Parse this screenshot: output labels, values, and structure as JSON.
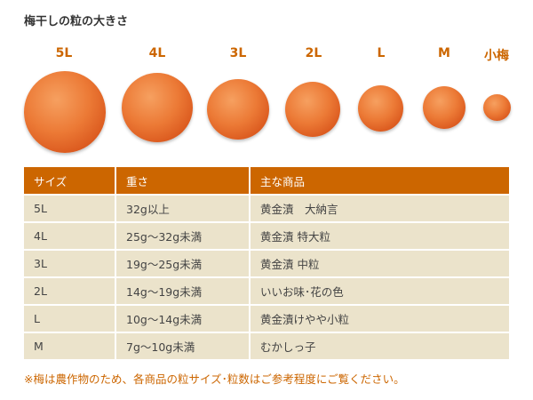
{
  "title": "梅干しの粒の大きさ",
  "plums": [
    {
      "label": "5L"
    },
    {
      "label": "4L"
    },
    {
      "label": "3L"
    },
    {
      "label": "2L"
    },
    {
      "label": "L"
    },
    {
      "label": "M"
    },
    {
      "label": "小梅"
    }
  ],
  "table": {
    "headers": [
      "サイズ",
      "重さ",
      "主な商品"
    ],
    "rows": [
      [
        "5L",
        "32g以上",
        "黄金漬　大納言"
      ],
      [
        "4L",
        "25g～32g未満",
        "黄金漬 特大粒"
      ],
      [
        "3L",
        "19g～25g未満",
        "黄金漬 中粒"
      ],
      [
        "2L",
        "14g～19g未満",
        "いいお味･花の色"
      ],
      [
        "L",
        "10g～14g未満",
        "黄金漬けやや小粒"
      ],
      [
        "M",
        "7g～10g未満",
        "むかしっ子"
      ]
    ]
  },
  "note": "※梅は農作物のため、各商品の粒サイズ･粒数はご参考程度にご覧ください。",
  "colors": {
    "accent": "#cc6600",
    "row_bg": "#ebe3cb"
  }
}
